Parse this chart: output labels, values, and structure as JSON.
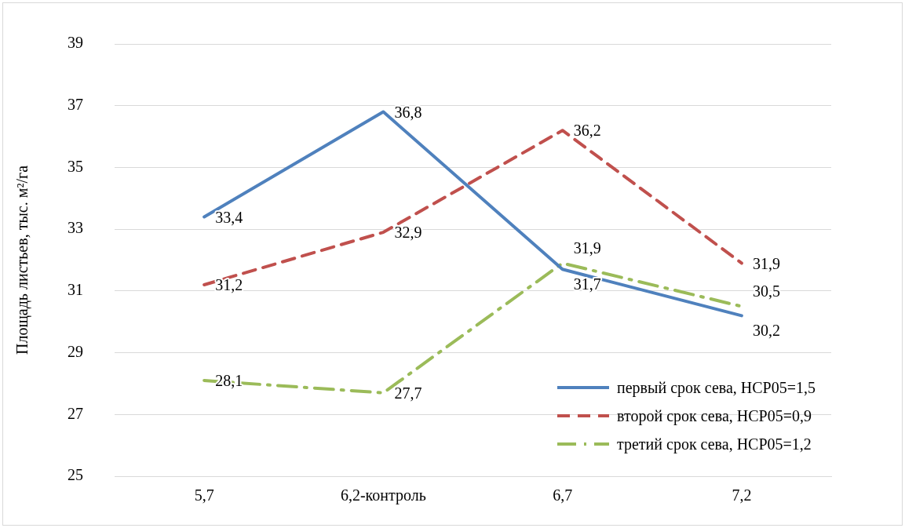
{
  "chart_data": {
    "type": "line",
    "ylabel": "Площадь листьев, тыс. м²/га",
    "categories": [
      "5,7",
      "6,2-контроль",
      "6,7",
      "7,2"
    ],
    "series": [
      {
        "name": "первый срок сева, НСР05=1,5",
        "color": "#4f81bd",
        "line_style": "solid",
        "values": [
          33.4,
          36.8,
          31.7,
          30.2
        ],
        "value_labels": [
          "33,4",
          "36,8",
          "31,7",
          "30,2"
        ]
      },
      {
        "name": "второй срок сева, НСР05=0,9",
        "color": "#c0504d",
        "line_style": "dashed",
        "values": [
          31.2,
          32.9,
          36.2,
          31.9
        ],
        "value_labels": [
          "31,2",
          "32,9",
          "36,2",
          "31,9"
        ]
      },
      {
        "name": "третий срок сева, НСР05=1,2",
        "color": "#9bbb59",
        "line_style": "dashdot",
        "values": [
          28.1,
          27.7,
          31.9,
          30.5
        ],
        "value_labels": [
          "28,1",
          "27,7",
          "31,9",
          "30,5"
        ]
      }
    ],
    "ylim": [
      25,
      39
    ],
    "yticks": [
      25,
      27,
      29,
      31,
      33,
      35,
      37,
      39
    ],
    "grid": "y",
    "legend": "bottom right",
    "marker": "none"
  }
}
